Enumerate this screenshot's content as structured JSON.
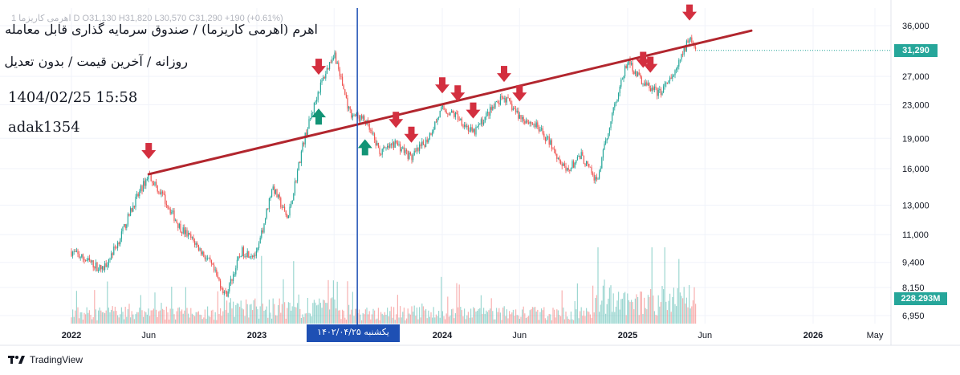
{
  "title": {
    "line1": "اهرم (اهرمی کاریزما) / صندوق سرمایه گذاری قابل معامله",
    "line2": "روزانه / آخرین قیمت / بدون تعدیل",
    "timestamp": "1404/02/25 15:58",
    "author": "adak1354"
  },
  "ohlc_readout": "اهرمی کاریزما 1 D  O31,130  H31,820  L30,570  C31,290  +190 (+0.61%)",
  "price_badge": "31,290",
  "volume_badge": "228.293M",
  "crosshair_label": "یکشنبه ۱۴۰۲/۰۴/۲۵",
  "brand": "TradingView",
  "colors": {
    "up": "#26a69a",
    "down": "#ef5350",
    "trendline": "#b2262e",
    "arrow_down": "#d32f3f",
    "arrow_up": "#129476",
    "crosshair": "#1e50b4",
    "price_line": "#26a69a"
  },
  "chart_data": {
    "type": "candlestick",
    "y_scale": "log",
    "ylim": [
      6600,
      37000
    ],
    "y_ticks": [
      "36,000",
      "31,290",
      "27,000",
      "23,000",
      "19,000",
      "16,000",
      "13,000",
      "11,000",
      "9,400",
      "8,150",
      "6,950"
    ],
    "x_ticks": [
      "2022",
      "Jun",
      "2023",
      "Jun",
      "2024",
      "Jun",
      "2025",
      "Jun",
      "2026",
      "May"
    ],
    "price_path": [
      [
        "2022-01",
        10000
      ],
      [
        "2022-02",
        9500
      ],
      [
        "2022-03",
        9000
      ],
      [
        "2022-04",
        10500
      ],
      [
        "2022-05",
        13000
      ],
      [
        "2022-06",
        15500
      ],
      [
        "2022-07",
        13500
      ],
      [
        "2022-08",
        11500
      ],
      [
        "2022-09",
        10500
      ],
      [
        "2022-10",
        9300
      ],
      [
        "2022-11",
        7800
      ],
      [
        "2022-12",
        10000
      ],
      [
        "2023-01",
        9800
      ],
      [
        "2023-02",
        14500
      ],
      [
        "2023-03",
        12000
      ],
      [
        "2023-04",
        18500
      ],
      [
        "2023-05",
        25000
      ],
      [
        "2023-06",
        31000
      ],
      [
        "2023-07",
        22000
      ],
      [
        "2023-08",
        21000
      ],
      [
        "2023-09",
        17500
      ],
      [
        "2023-10",
        18500
      ],
      [
        "2023-11",
        17000
      ],
      [
        "2023-12",
        18800
      ],
      [
        "2024-01",
        22500
      ],
      [
        "2024-02",
        21500
      ],
      [
        "2024-03",
        19500
      ],
      [
        "2024-04",
        22000
      ],
      [
        "2024-05",
        24000
      ],
      [
        "2024-06",
        21500
      ],
      [
        "2024-07",
        20500
      ],
      [
        "2024-08",
        18500
      ],
      [
        "2024-09",
        15700
      ],
      [
        "2024-10",
        17200
      ],
      [
        "2024-11",
        14800
      ],
      [
        "2024-12",
        22000
      ],
      [
        "2025-01",
        29500
      ],
      [
        "2025-02",
        26000
      ],
      [
        "2025-03",
        24500
      ],
      [
        "2025-04",
        27000
      ],
      [
        "2025-05",
        34000
      ],
      [
        "2025-05-15",
        31290
      ]
    ],
    "trendline": {
      "start": [
        "2022-06",
        15500
      ],
      "end": [
        "2025-09",
        35000
      ]
    },
    "down_arrows": [
      "2022-06",
      "2023-05",
      "2023-10",
      "2023-11",
      "2024-01",
      "2024-02",
      "2024-03",
      "2024-05",
      "2024-06",
      "2025-02",
      "2025-02-15",
      "2025-05"
    ],
    "up_arrows": [
      "2023-05",
      "2023-08"
    ],
    "crosshair_date": "2023-07-16",
    "last_price": 31290,
    "last_volume": "228.293M"
  }
}
